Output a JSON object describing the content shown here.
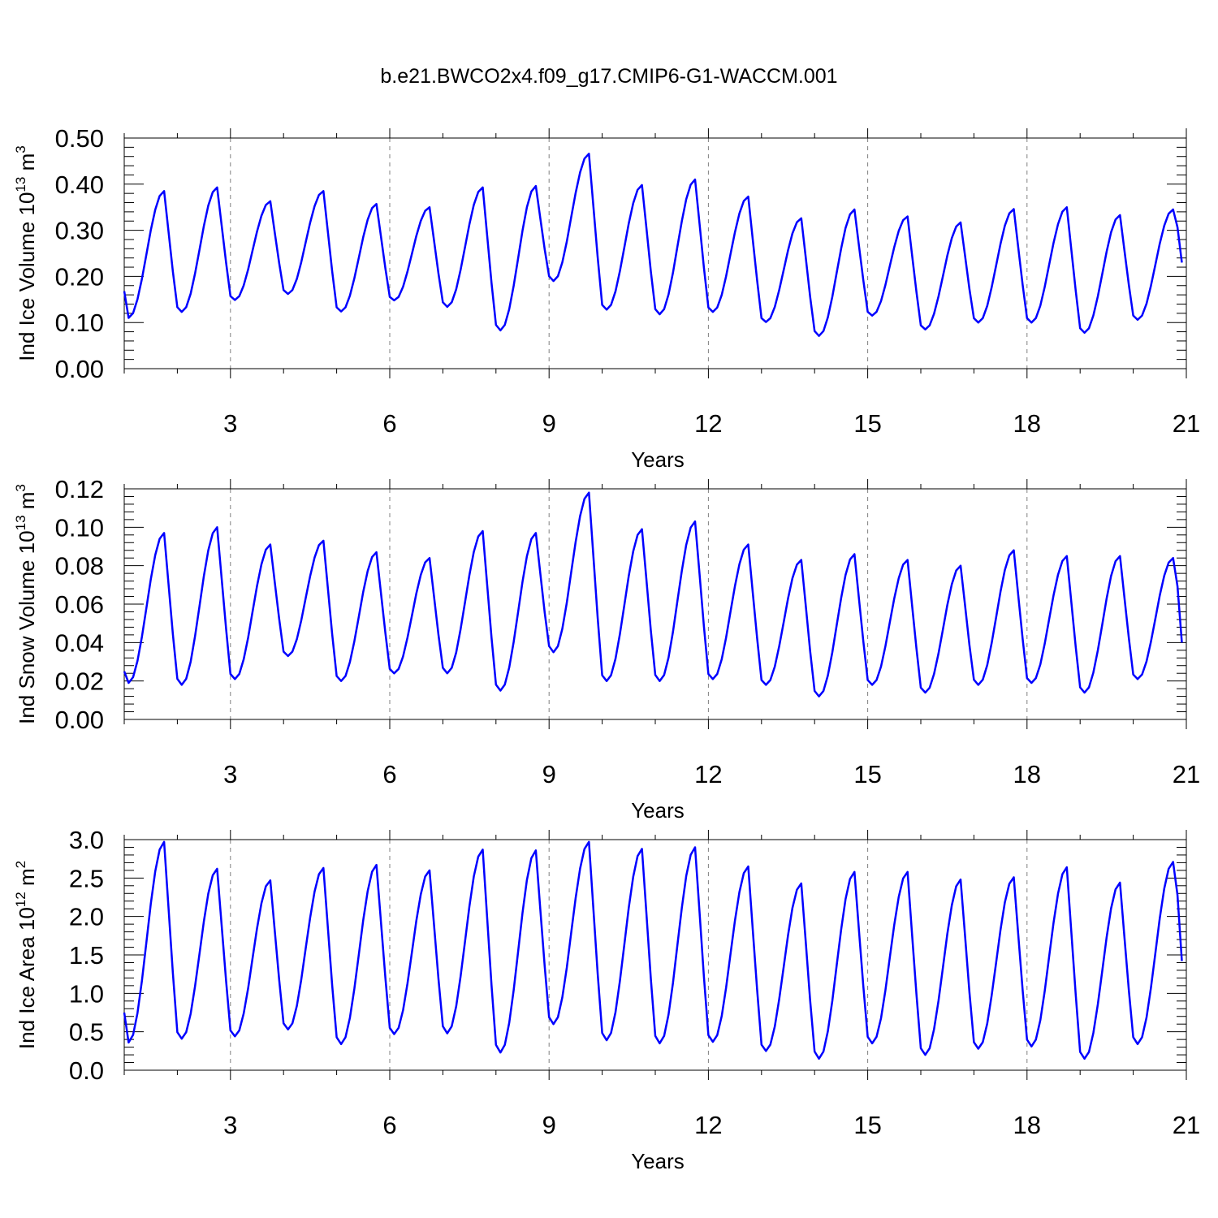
{
  "title": "b.e21.BWCO2x4.f09_g17.CMIP6-G1-WACCM.001",
  "colors": {
    "line": "#0000ff",
    "axis": "#000000",
    "grid": "#808080"
  },
  "chart_data": [
    {
      "type": "line",
      "xlabel": "Years",
      "ylabel_main": "Ind Ice Volume 10",
      "ylabel_exp": "13",
      "ylabel_unit": " m",
      "ylabel_unit_exp": "3",
      "xlim": [
        1,
        21
      ],
      "ylim": [
        0,
        0.5
      ],
      "xticks": [
        3,
        6,
        9,
        12,
        15,
        18,
        21
      ],
      "xtick_labels": [
        "3",
        "6",
        "9",
        "12",
        "15",
        "18",
        "21"
      ],
      "yticks": [
        0,
        0.1,
        0.2,
        0.3,
        0.4,
        0.5
      ],
      "ytick_labels": [
        "0.00",
        "0.10",
        "0.20",
        "0.30",
        "0.40",
        "0.50"
      ],
      "grid": "dashed vertical at major x ticks",
      "peaks": [
        0.385,
        0.393,
        0.363,
        0.385,
        0.357,
        0.35,
        0.393,
        0.396,
        0.466,
        0.398,
        0.41,
        0.373,
        0.326,
        0.345,
        0.33,
        0.317,
        0.346,
        0.35,
        0.333,
        0.345
      ],
      "troughs": [
        0.11,
        0.123,
        0.149,
        0.162,
        0.124,
        0.148,
        0.134,
        0.083,
        0.19,
        0.128,
        0.118,
        0.123,
        0.101,
        0.071,
        0.115,
        0.085,
        0.1,
        0.1,
        0.078,
        0.106
      ],
      "start": 0.168,
      "end": 0.23
    },
    {
      "type": "line",
      "xlabel": "Years",
      "ylabel_main": "Ind Snow Volume 10",
      "ylabel_exp": "13",
      "ylabel_unit": " m",
      "ylabel_unit_exp": "3",
      "xlim": [
        1,
        21
      ],
      "ylim": [
        0,
        0.12
      ],
      "xticks": [
        3,
        6,
        9,
        12,
        15,
        18,
        21
      ],
      "xtick_labels": [
        "3",
        "6",
        "9",
        "12",
        "15",
        "18",
        "21"
      ],
      "yticks": [
        0,
        0.02,
        0.04,
        0.06,
        0.08,
        0.1,
        0.12
      ],
      "ytick_labels": [
        "0.00",
        "0.02",
        "0.04",
        "0.06",
        "0.08",
        "0.10",
        "0.12"
      ],
      "grid": "dashed vertical at major x ticks",
      "peaks": [
        0.097,
        0.1,
        0.091,
        0.093,
        0.087,
        0.084,
        0.098,
        0.097,
        0.118,
        0.099,
        0.103,
        0.091,
        0.083,
        0.086,
        0.083,
        0.08,
        0.088,
        0.085,
        0.085,
        0.084
      ],
      "troughs": [
        0.019,
        0.018,
        0.021,
        0.033,
        0.02,
        0.024,
        0.024,
        0.015,
        0.035,
        0.02,
        0.02,
        0.021,
        0.018,
        0.012,
        0.018,
        0.014,
        0.018,
        0.019,
        0.014,
        0.021
      ],
      "start": 0.025,
      "end": 0.04
    },
    {
      "type": "line",
      "xlabel": "Years",
      "ylabel_main": "Ind Ice Area 10",
      "ylabel_exp": "12",
      "ylabel_unit": " m",
      "ylabel_unit_exp": "2",
      "xlim": [
        1,
        21
      ],
      "ylim": [
        0,
        3
      ],
      "xticks": [
        3,
        6,
        9,
        12,
        15,
        18,
        21
      ],
      "xtick_labels": [
        "3",
        "6",
        "9",
        "12",
        "15",
        "18",
        "21"
      ],
      "yticks": [
        0,
        0.5,
        1,
        1.5,
        2,
        2.5,
        3
      ],
      "ytick_labels": [
        "0.0",
        "0.5",
        "1.0",
        "1.5",
        "2.0",
        "2.5",
        "3.0"
      ],
      "grid": "dashed vertical at major x ticks",
      "peaks": [
        2.97,
        2.62,
        2.47,
        2.63,
        2.67,
        2.6,
        2.87,
        2.86,
        2.97,
        2.88,
        2.9,
        2.65,
        2.43,
        2.58,
        2.58,
        2.48,
        2.51,
        2.64,
        2.44,
        2.71
      ],
      "troughs": [
        0.36,
        0.41,
        0.44,
        0.53,
        0.34,
        0.47,
        0.48,
        0.23,
        0.6,
        0.39,
        0.35,
        0.37,
        0.25,
        0.15,
        0.35,
        0.2,
        0.28,
        0.31,
        0.15,
        0.34
      ],
      "start": 0.75,
      "end": 1.42
    }
  ]
}
